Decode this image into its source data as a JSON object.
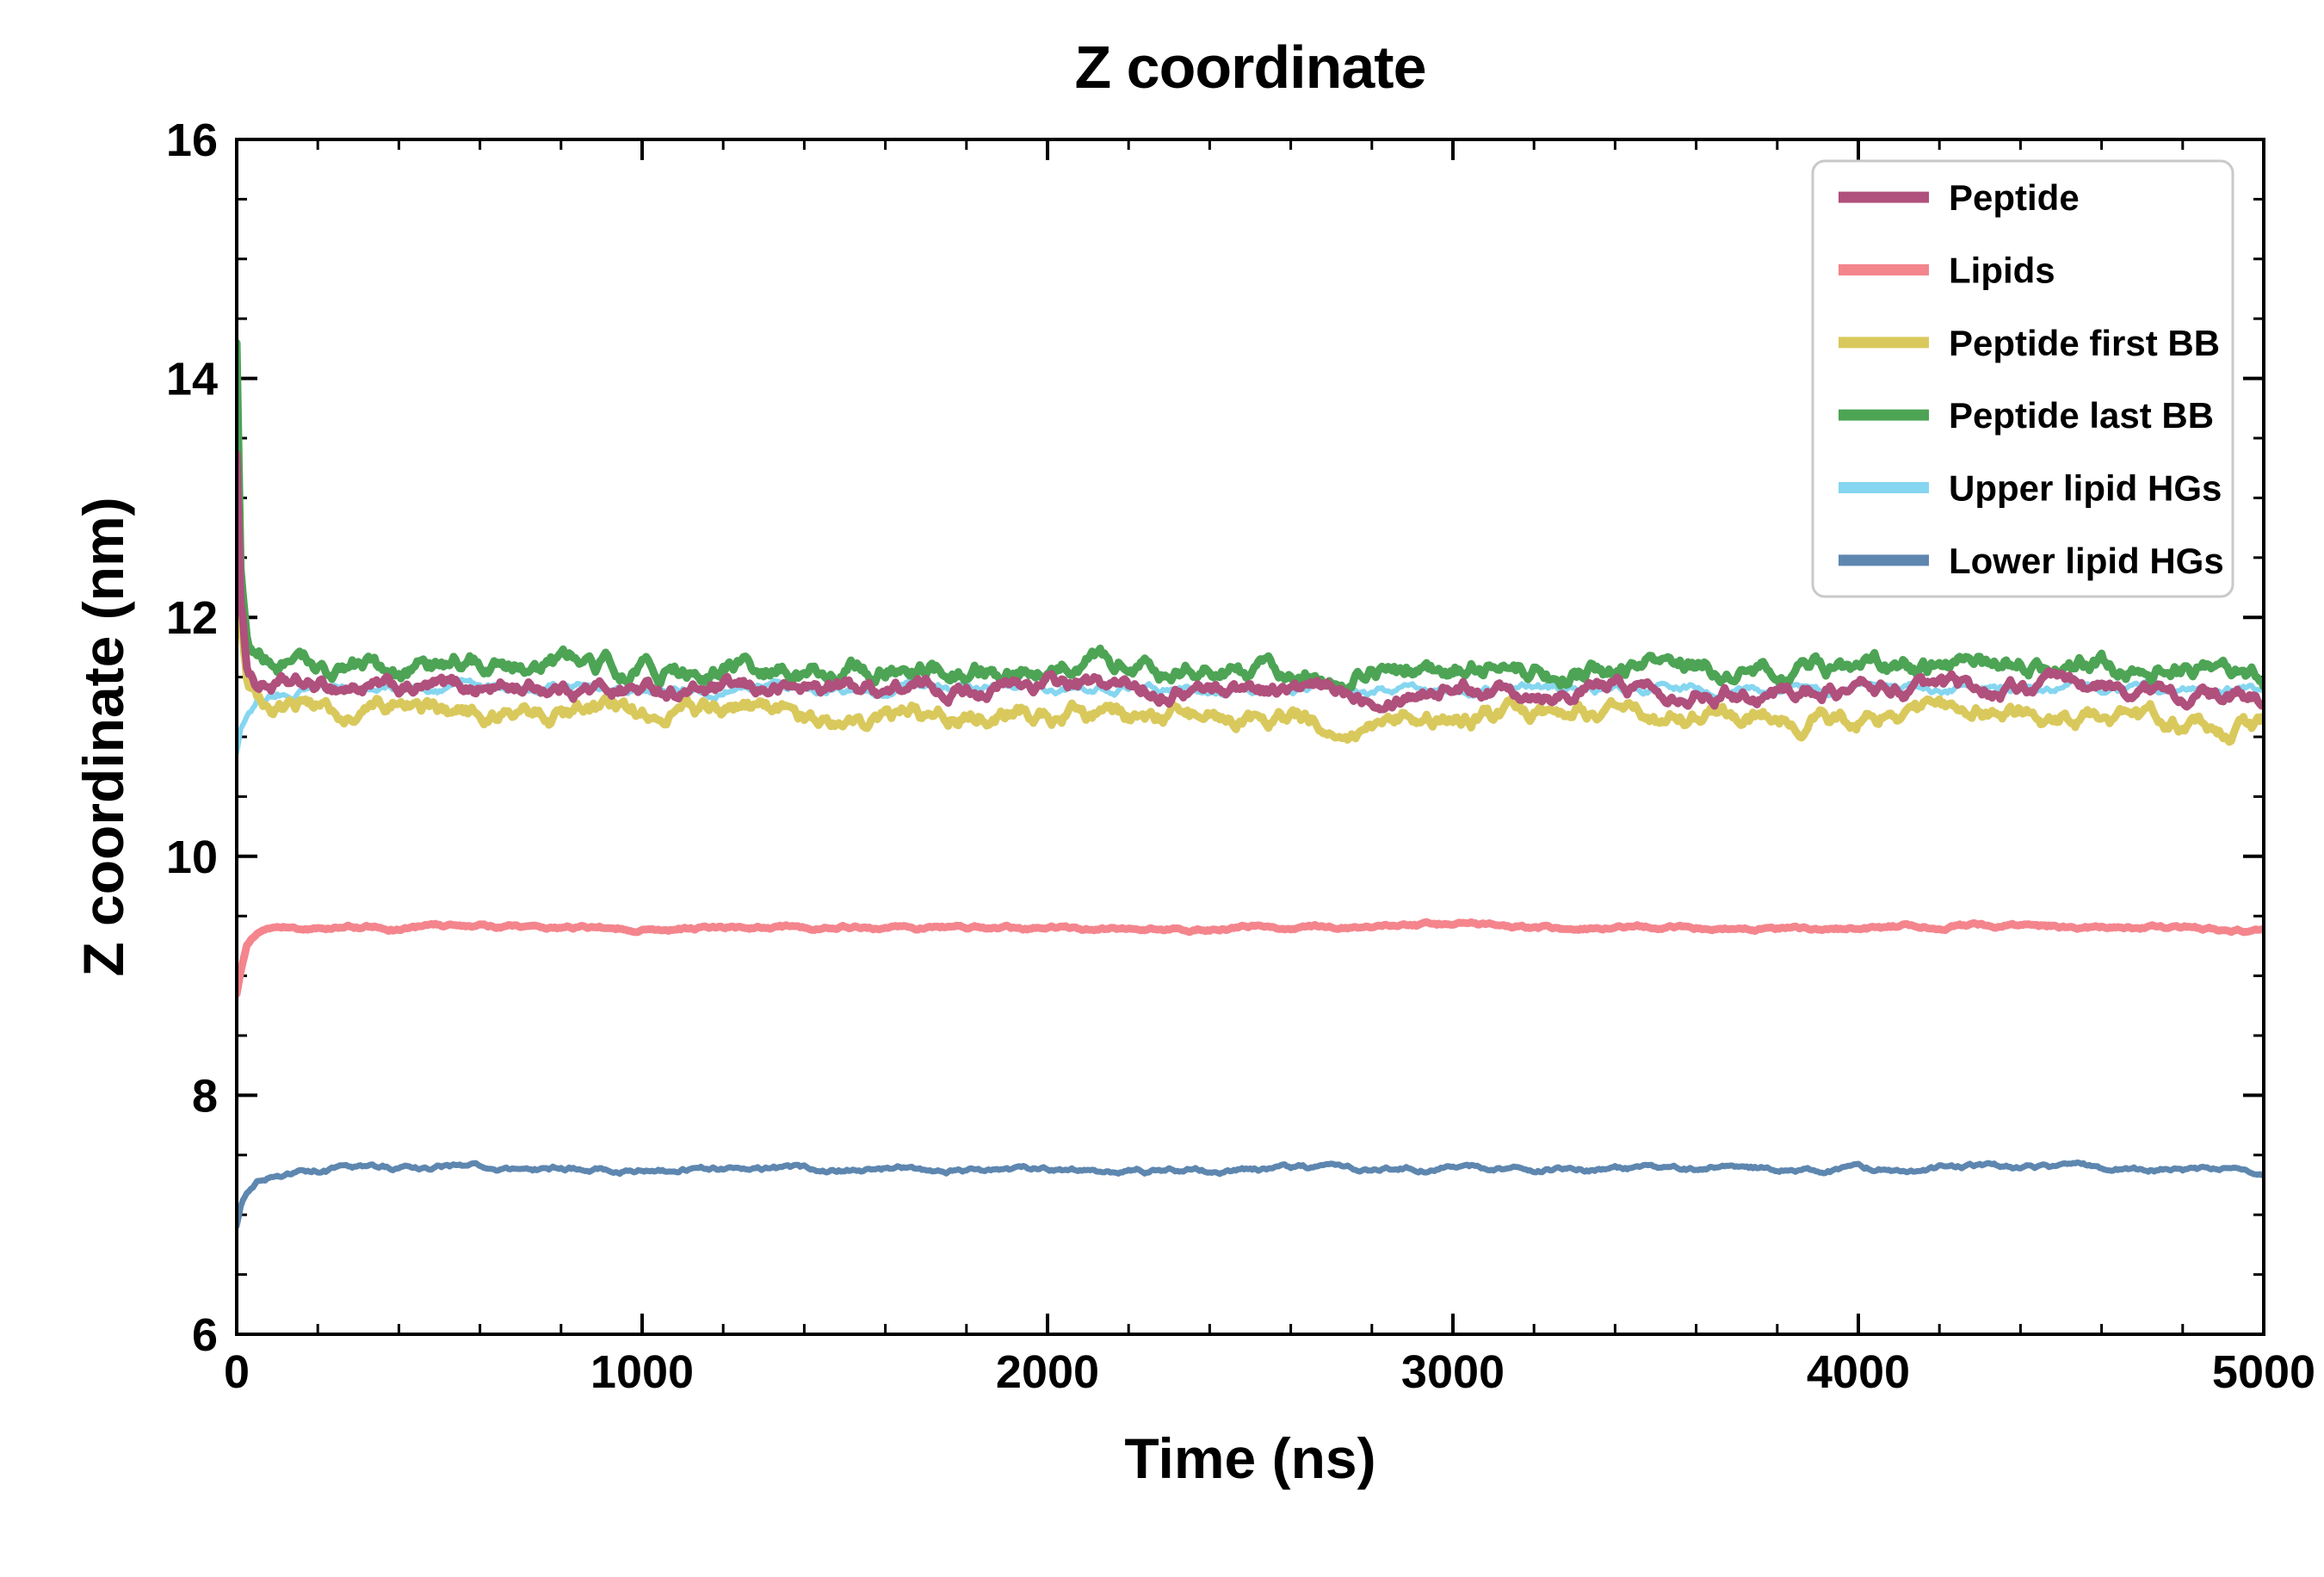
{
  "title": "Z coordinate",
  "chart_data": {
    "type": "line",
    "title": "Z coordinate",
    "xlabel": "Time (ns)",
    "ylabel": "Z coordinate (nm)",
    "xlim": [
      0,
      5000
    ],
    "ylim": [
      6,
      16
    ],
    "xticks": [
      0,
      1000,
      2000,
      3000,
      4000,
      5000
    ],
    "yticks": [
      6,
      8,
      10,
      12,
      14,
      16
    ],
    "x_minor_step": 200,
    "y_minor_step": 0.5,
    "grid": false,
    "legend_position": "upper right",
    "x": [
      0,
      10,
      25,
      50,
      100,
      200,
      300,
      400,
      500,
      750,
      1000,
      1250,
      1500,
      1750,
      2000,
      2250,
      2500,
      2750,
      3000,
      3250,
      3500,
      3750,
      4000,
      4250,
      4500,
      4750,
      5000
    ],
    "series": [
      {
        "name": "Peptide",
        "color": "#b0507c",
        "linewidth": 9,
        "noise": 0.09,
        "values": [
          13.4,
          12.1,
          11.6,
          11.45,
          11.43,
          11.4,
          11.42,
          11.38,
          11.4,
          11.42,
          11.4,
          11.38,
          11.42,
          11.4,
          11.44,
          11.4,
          11.42,
          11.36,
          11.44,
          11.4,
          11.42,
          11.38,
          11.4,
          11.38,
          11.42,
          11.36,
          11.3
        ]
      },
      {
        "name": "Lipids",
        "color": "#f4858d",
        "linewidth": 9,
        "noise": 0.022,
        "values": [
          8.85,
          9.05,
          9.25,
          9.35,
          9.4,
          9.4,
          9.41,
          9.4,
          9.42,
          9.41,
          9.4,
          9.4,
          9.41,
          9.4,
          9.4,
          9.39,
          9.4,
          9.4,
          9.43,
          9.4,
          9.41,
          9.4,
          9.4,
          9.42,
          9.41,
          9.4,
          9.37
        ]
      },
      {
        "name": "Peptide first BB",
        "color": "#d9c95c",
        "linewidth": 9,
        "noise": 0.1,
        "values": [
          13.25,
          11.9,
          11.5,
          11.35,
          11.28,
          11.24,
          11.2,
          11.24,
          11.2,
          11.2,
          11.16,
          11.2,
          11.14,
          11.18,
          11.2,
          11.14,
          11.18,
          11.1,
          11.16,
          11.2,
          11.14,
          11.18,
          11.15,
          11.22,
          11.18,
          11.1,
          11.08
        ]
      },
      {
        "name": "Peptide last BB",
        "color": "#4da455",
        "linewidth": 9,
        "noise": 0.11,
        "values": [
          14.3,
          12.4,
          11.85,
          11.65,
          11.6,
          11.55,
          11.6,
          11.55,
          11.6,
          11.64,
          11.55,
          11.55,
          11.6,
          11.55,
          11.6,
          11.55,
          11.55,
          11.5,
          11.62,
          11.55,
          11.58,
          11.55,
          11.55,
          11.6,
          11.58,
          11.55,
          11.5
        ]
      },
      {
        "name": "Upper lipid HGs",
        "color": "#85d6f0",
        "linewidth": 6,
        "noise": 0.05,
        "values": [
          10.88,
          11.05,
          11.2,
          11.32,
          11.38,
          11.4,
          11.41,
          11.4,
          11.41,
          11.42,
          11.4,
          11.4,
          11.41,
          11.4,
          11.42,
          11.4,
          11.4,
          11.38,
          11.42,
          11.4,
          11.41,
          11.4,
          11.4,
          11.42,
          11.42,
          11.4,
          11.38
        ]
      },
      {
        "name": "Lower lipid HGs",
        "color": "#5e87b0",
        "linewidth": 7,
        "noise": 0.028,
        "values": [
          6.9,
          7.05,
          7.18,
          7.28,
          7.34,
          7.37,
          7.38,
          7.38,
          7.4,
          7.39,
          7.38,
          7.38,
          7.39,
          7.38,
          7.38,
          7.37,
          7.38,
          7.38,
          7.4,
          7.38,
          7.39,
          7.38,
          7.38,
          7.4,
          7.39,
          7.38,
          7.36
        ]
      }
    ],
    "draw_order": [
      4,
      2,
      3,
      0,
      1,
      5
    ]
  }
}
